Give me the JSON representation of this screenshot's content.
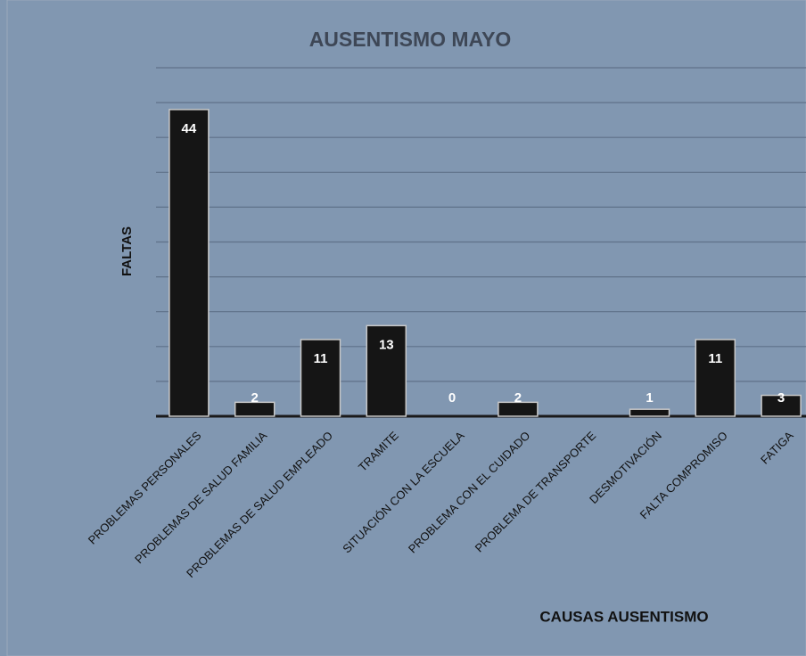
{
  "chart_data": {
    "type": "bar",
    "title": "AUSENTISMO  MAYO",
    "x_label": "CAUSAS AUSENTISMO",
    "y_label": "FALTAS",
    "categories": [
      "PROBLEMAS PERSONALES",
      "PROBLEMAS DE SALUD FAMILIA",
      "PROBLEMAS DE SALUD EMPLEADO",
      "TRAMITE",
      "SITUACIÓN CON LA ESCUELA",
      "PROBLEMA CON EL CUIDADO",
      "PROBLEMA DE TRANSPORTE",
      "DESMOTIVACIÓN",
      "FALTA COMPROMISO",
      "FATIGA"
    ],
    "values": [
      44,
      2,
      11,
      13,
      0,
      2,
      0,
      1,
      11,
      3
    ],
    "value_labels": [
      "44",
      "2",
      "11",
      "13",
      "0",
      "2",
      null,
      "1",
      "11",
      "3"
    ],
    "color": "#151515",
    "ylim": [
      0,
      50
    ],
    "yticks": [
      0,
      5,
      10,
      15,
      20,
      25,
      30,
      35,
      40,
      45,
      50
    ],
    "grid": true
  }
}
